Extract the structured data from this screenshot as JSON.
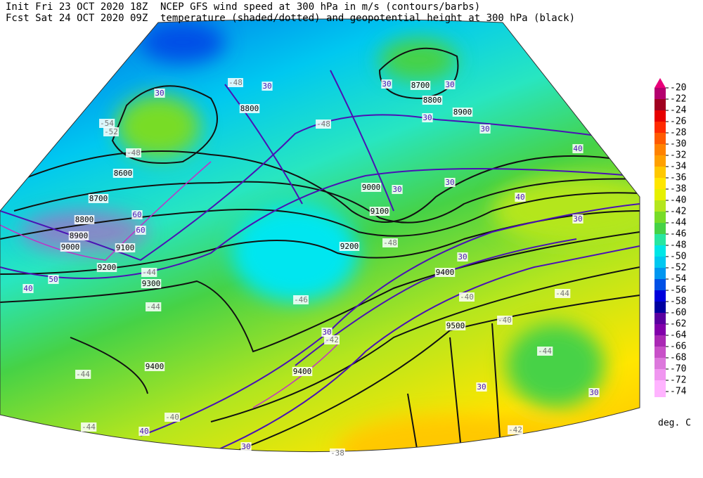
{
  "header": {
    "init": "Init  Fri 23 OCT 2020 18Z",
    "fcst": "Fcst Sat 24 OCT 2020 09Z",
    "title_line1": "NCEP GFS wind speed at 300 hPa in m/s (contours/barbs)",
    "title_line2": "temperature (shaded/dotted) and geopotential height at 300 hPa (black)"
  },
  "colorbar": {
    "items": [
      {
        "label": "-20",
        "color": "#e8007a"
      },
      {
        "label": "-22",
        "color": "#b4006e"
      },
      {
        "label": "-24",
        "color": "#a00020"
      },
      {
        "label": "-26",
        "color": "#e60000"
      },
      {
        "label": "-28",
        "color": "#ff2a00"
      },
      {
        "label": "-30",
        "color": "#ff5a00"
      },
      {
        "label": "-32",
        "color": "#ff8200"
      },
      {
        "label": "-34",
        "color": "#ffa000"
      },
      {
        "label": "-36",
        "color": "#ffc800"
      },
      {
        "label": "-38",
        "color": "#ffe600"
      },
      {
        "label": "-40",
        "color": "#e6f000"
      },
      {
        "label": "-42",
        "color": "#b4e61e"
      },
      {
        "label": "-44",
        "color": "#78dc28"
      },
      {
        "label": "-46",
        "color": "#46d246"
      },
      {
        "label": "-48",
        "color": "#28e6a0"
      },
      {
        "label": "-50",
        "color": "#00e6e6"
      },
      {
        "label": "-52",
        "color": "#00c8f0"
      },
      {
        "label": "-54",
        "color": "#0096f0"
      },
      {
        "label": "-56",
        "color": "#0050e6"
      },
      {
        "label": "-58",
        "color": "#0000dc"
      },
      {
        "label": "-60",
        "color": "#0000a0"
      },
      {
        "label": "-62",
        "color": "#5a00a0"
      },
      {
        "label": "-64",
        "color": "#8200aa"
      },
      {
        "label": "-66",
        "color": "#aa28b4"
      },
      {
        "label": "-68",
        "color": "#c850c8"
      },
      {
        "label": "-70",
        "color": "#dc78dc"
      },
      {
        "label": "-72",
        "color": "#f096f0"
      },
      {
        "label": "-74",
        "color": "#ffb4ff"
      }
    ],
    "units": "deg. C"
  },
  "map": {
    "height_labels": [
      "8600",
      "8700",
      "8800",
      "8900",
      "9000",
      "9100",
      "9200",
      "9300",
      "9400",
      "9400",
      "9500",
      "9400",
      "9200",
      "9100",
      "9000",
      "8800",
      "8700",
      "8800",
      "8900"
    ],
    "wind_labels": [
      "30",
      "30",
      "30",
      "30",
      "30",
      "30",
      "30",
      "30",
      "30",
      "30",
      "40",
      "30",
      "40",
      "30",
      "30",
      "30",
      "40",
      "40",
      "60",
      "60",
      "50"
    ],
    "temperature_labels": [
      "-48",
      "-52",
      "-54",
      "-48",
      "-46",
      "-44",
      "-44",
      "-44",
      "-40",
      "-40",
      "-44",
      "-44",
      "-40",
      "-42",
      "-38",
      "-48",
      "-48",
      "-42",
      "-44"
    ]
  }
}
